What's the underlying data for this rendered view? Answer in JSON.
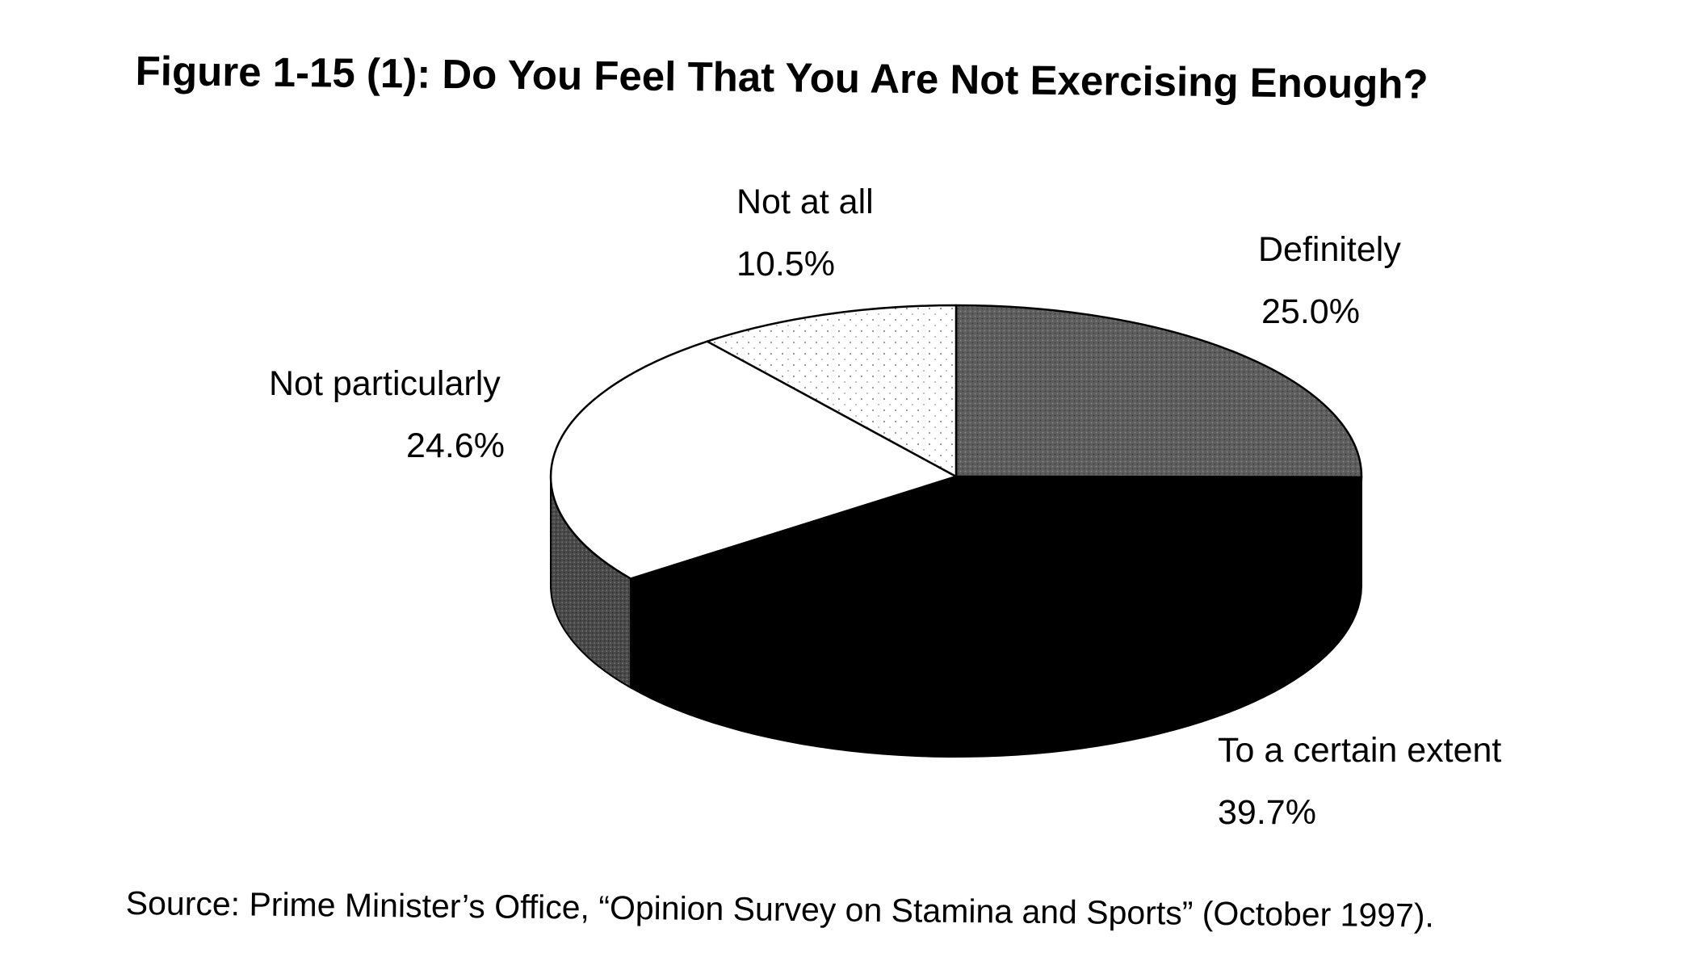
{
  "chart_data": {
    "type": "pie",
    "title": "Figure 1-15 (1): Do You Feel That You Are Not Exercising Enough?",
    "slices": [
      {
        "label": "Definitely",
        "value": 25.0,
        "value_label": "25.0%",
        "color": "#5e5e5e"
      },
      {
        "label": "To a certain extent",
        "value": 39.7,
        "value_label": "39.7%",
        "color": "#000000"
      },
      {
        "label": "Not particularly",
        "value": 24.6,
        "value_label": "24.6%",
        "color": "#ffffff"
      },
      {
        "label": "Not at all",
        "value": 10.5,
        "value_label": "10.5%",
        "color": "#f3f3f3"
      }
    ],
    "source": "Source: Prime Minister’s Office, “Opinion Survey on Stamina and Sports” (October 1997)."
  }
}
